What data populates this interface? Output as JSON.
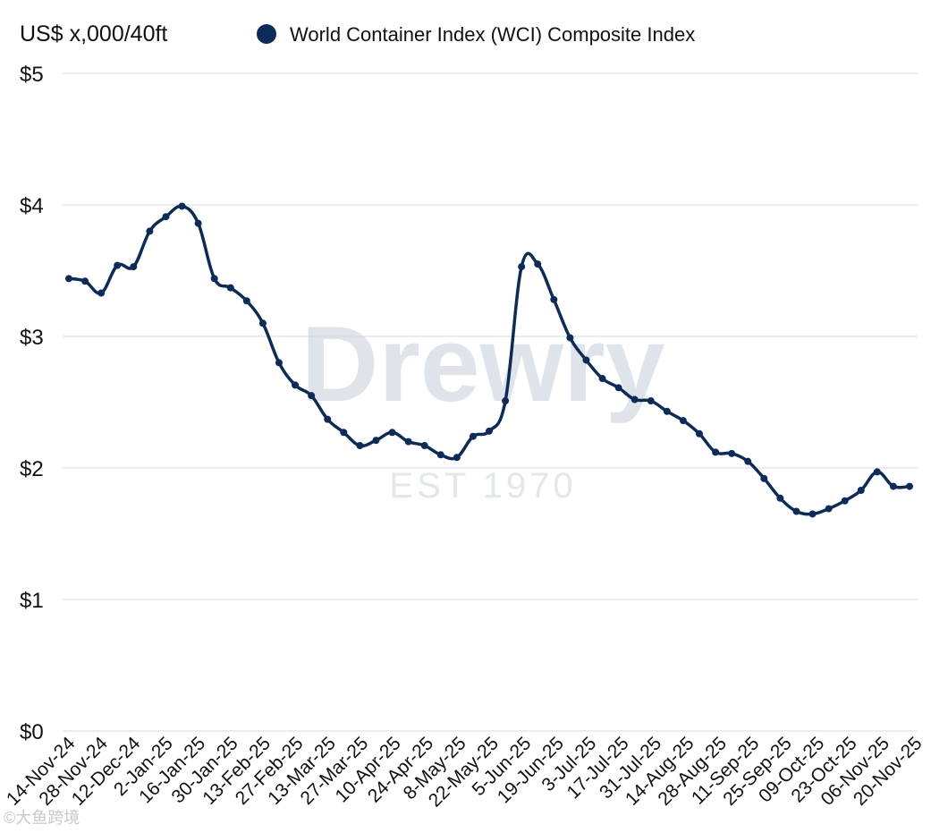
{
  "chart_data": {
    "type": "line",
    "title": "",
    "ylabel": "US$ x,000/40ft",
    "xlabel": "",
    "ylim": [
      0,
      5
    ],
    "yticks": [
      0,
      1,
      2,
      3,
      4,
      5
    ],
    "ytick_labels": [
      "$0",
      "$1",
      "$2",
      "$3",
      "$4",
      "$5"
    ],
    "grid": true,
    "legend_position": "top",
    "series": [
      {
        "name": "World Container Index (WCI) Composite Index",
        "color": "#0b2c5a",
        "values": [
          3.44,
          3.42,
          3.33,
          3.54,
          3.53,
          3.8,
          3.91,
          3.99,
          3.86,
          3.44,
          3.37,
          3.27,
          3.1,
          2.8,
          2.63,
          2.55,
          2.37,
          2.27,
          2.17,
          2.21,
          2.27,
          2.2,
          2.17,
          2.1,
          2.08,
          2.24,
          2.28,
          2.51,
          3.53,
          3.55,
          3.28,
          2.99,
          2.82,
          2.68,
          2.61,
          2.52,
          2.51,
          2.43,
          2.36,
          2.26,
          2.12,
          2.11,
          2.05,
          1.92,
          1.77,
          1.67,
          1.65,
          1.69,
          1.75,
          1.83,
          1.97,
          1.86,
          1.86
        ]
      }
    ],
    "x_tick_labels": [
      "14-Nov-24",
      "28-Nov-24",
      "12-Dec-24",
      "2-Jan-25",
      "16-Jan-25",
      "30-Jan-25",
      "13-Feb-25",
      "27-Feb-25",
      "13-Mar-25",
      "27-Mar-25",
      "10-Apr-25",
      "24-Apr-25",
      "8-May-25",
      "22-May-25",
      "5-Jun-25",
      "19-Jun-25",
      "3-Jul-25",
      "17-Jul-25",
      "31-Jul-25",
      "14-Aug-25",
      "28-Aug-25",
      "11-Sep-25",
      "25-Sep-25",
      "09-Oct-25",
      "23-Oct-25",
      "06-Nov-25",
      "20-Nov-25"
    ]
  },
  "watermark": {
    "brand": "Drewry",
    "established": "EST 1970"
  },
  "source_watermark": "©大鱼跨境"
}
